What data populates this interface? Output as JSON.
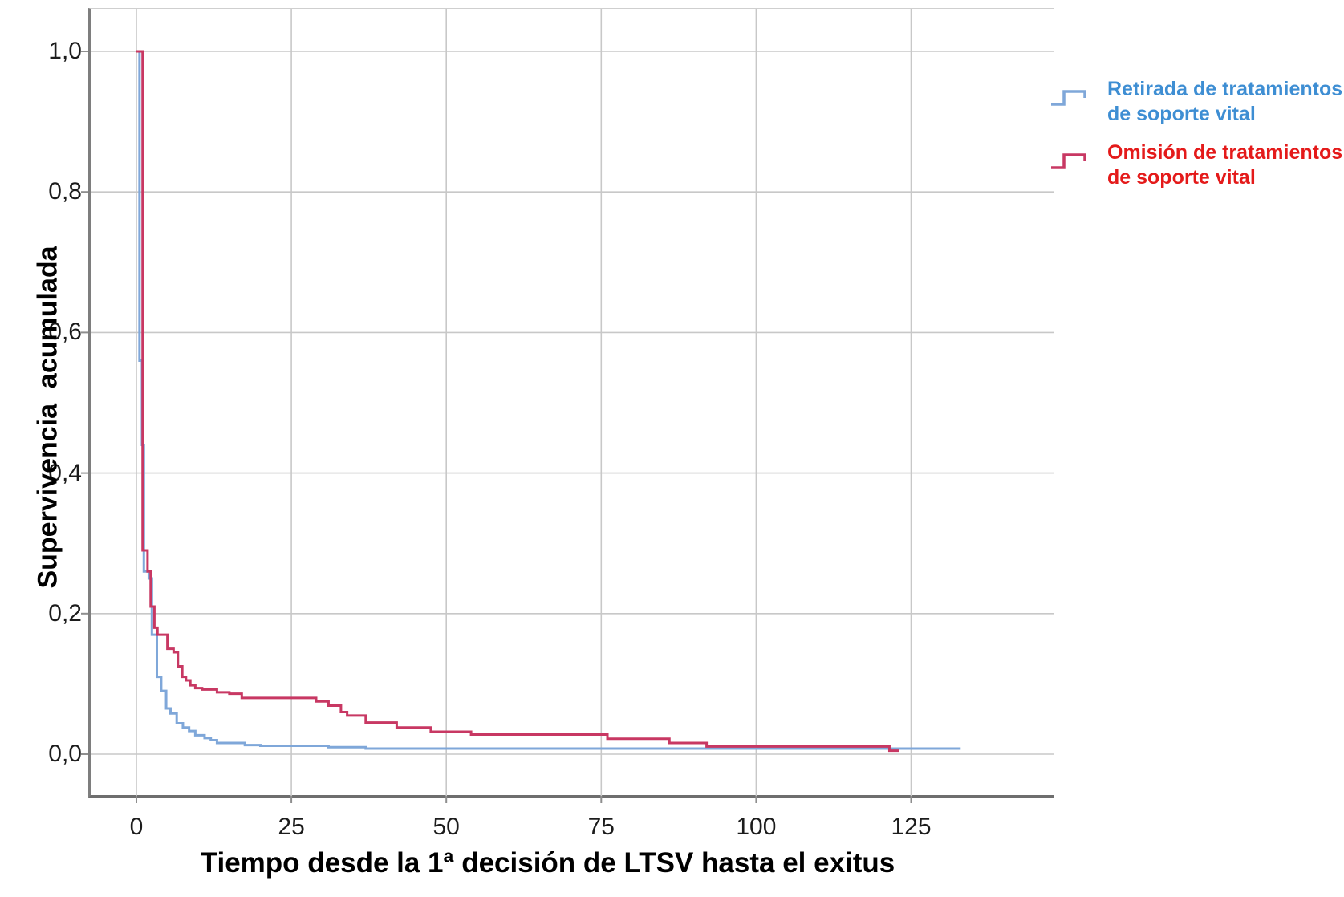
{
  "chart_data": {
    "type": "line",
    "subtype": "kaplan-meier-step",
    "title": "",
    "xlabel": "Tiempo desde la 1ª decisión de LTSV hasta el exitus",
    "ylabel": "Supervivencia  acumulada",
    "x_axis": {
      "ticks": [
        0,
        25,
        50,
        75,
        100,
        125
      ],
      "tick_labels": [
        "0",
        "25",
        "50",
        "75",
        "100",
        "125"
      ],
      "range_shown": [
        -7.4,
        148
      ]
    },
    "y_axis": {
      "ticks": [
        1.0,
        0.8,
        0.6,
        0.4,
        0.2,
        0.0
      ],
      "tick_labels": [
        "1,0",
        "0,8",
        "0,6",
        "0,4",
        "0,2",
        "0,0"
      ],
      "range_shown": [
        -0.06,
        1.06
      ]
    },
    "grid": true,
    "legend_position": "right",
    "series": [
      {
        "name": "Retirada de tratamientos de soporte vital",
        "color": "#7FA7D9",
        "end_time": 133,
        "points": [
          [
            0,
            1.0
          ],
          [
            0.5,
            0.56
          ],
          [
            0.9,
            0.44
          ],
          [
            1.2,
            0.26
          ],
          [
            2,
            0.25
          ],
          [
            2.5,
            0.17
          ],
          [
            3.3,
            0.11
          ],
          [
            4,
            0.09
          ],
          [
            4.8,
            0.065
          ],
          [
            5.5,
            0.058
          ],
          [
            6.5,
            0.044
          ],
          [
            7.5,
            0.038
          ],
          [
            8.5,
            0.033
          ],
          [
            9.5,
            0.027
          ],
          [
            11,
            0.023
          ],
          [
            12,
            0.02
          ],
          [
            13,
            0.016
          ],
          [
            17.5,
            0.013
          ],
          [
            20,
            0.012
          ],
          [
            31,
            0.01
          ],
          [
            37,
            0.008
          ]
        ]
      },
      {
        "name": "Omisión de tratamientos de soporte vital",
        "color": "#C83863",
        "end_time": 123,
        "points": [
          [
            0,
            1.0
          ],
          [
            1,
            0.29
          ],
          [
            1.8,
            0.26
          ],
          [
            2.3,
            0.21
          ],
          [
            2.9,
            0.18
          ],
          [
            3.4,
            0.17
          ],
          [
            5,
            0.15
          ],
          [
            6,
            0.145
          ],
          [
            6.7,
            0.125
          ],
          [
            7.4,
            0.11
          ],
          [
            8,
            0.105
          ],
          [
            8.7,
            0.098
          ],
          [
            9.5,
            0.094
          ],
          [
            10.6,
            0.092
          ],
          [
            13,
            0.088
          ],
          [
            15,
            0.086
          ],
          [
            17,
            0.08
          ],
          [
            29,
            0.075
          ],
          [
            31,
            0.069
          ],
          [
            33,
            0.06
          ],
          [
            34,
            0.055
          ],
          [
            37,
            0.045
          ],
          [
            42,
            0.038
          ],
          [
            47.5,
            0.032
          ],
          [
            54,
            0.028
          ],
          [
            76,
            0.022
          ],
          [
            86,
            0.016
          ],
          [
            92,
            0.011
          ],
          [
            121.5,
            0.005
          ]
        ]
      }
    ]
  },
  "legend": {
    "items": [
      {
        "line1": "Retirada de tratamientos",
        "line2": "de soporte vital",
        "color": "#7FA7D9",
        "text_color": "#3E8ED3"
      },
      {
        "line1": "Omisión de tratamientos",
        "line2": "de soporte vital",
        "color": "#C83863",
        "text_color": "#E41A1A"
      }
    ]
  },
  "colors": {
    "grid": "#C8C8C8",
    "frame": "#7E7E7E",
    "tick": "#8E8E8E",
    "tick_text": "#1C1C1C",
    "background": "#FFFFFF"
  }
}
